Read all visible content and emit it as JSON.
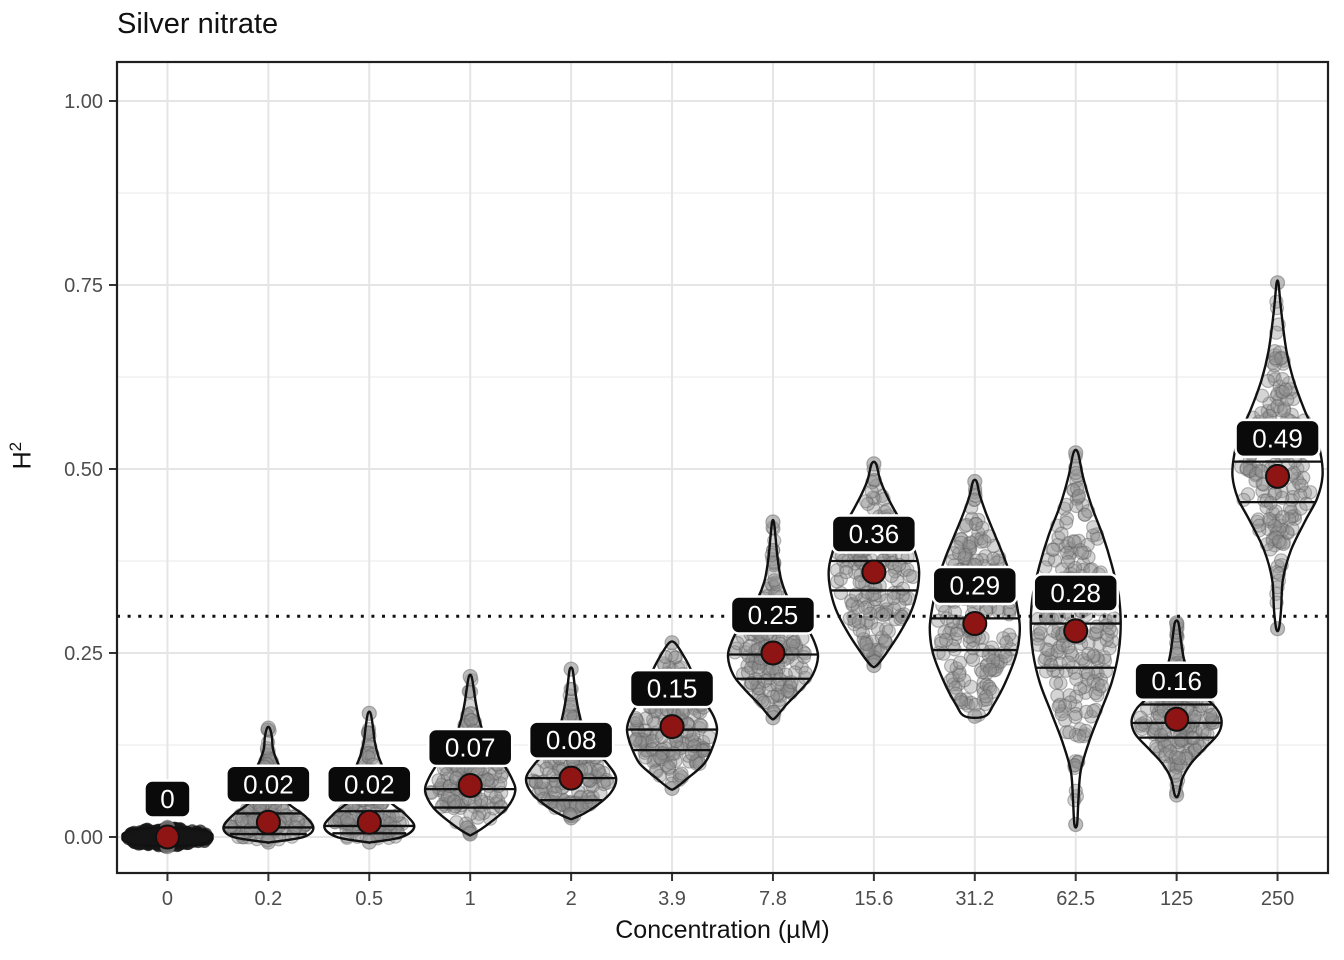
{
  "title": "Silver nitrate",
  "axes": {
    "x": {
      "label": "Concentration (µM)",
      "ticks": [
        "0",
        "0.2",
        "0.5",
        "1",
        "2",
        "3.9",
        "7.8",
        "15.6",
        "31.2",
        "62.5",
        "125",
        "250"
      ]
    },
    "y": {
      "label_base": "H",
      "label_exp": "2",
      "ticks": [
        "0.00",
        "0.25",
        "0.50",
        "0.75",
        "1.00"
      ],
      "tick_values": [
        0,
        0.25,
        0.5,
        0.75,
        1.0
      ],
      "minor_values": [
        0.125,
        0.375,
        0.625,
        0.875
      ]
    }
  },
  "reference_line": {
    "value": 0.3,
    "style": "dotted"
  },
  "colors": {
    "mean_point": "#8f1414",
    "violin_stroke": "#111111",
    "violin_fill": "#ffffff",
    "label_bg": "#0a0a0a",
    "label_text": "#ffffff",
    "label_border": "#ffffff",
    "grid_major": "#e5e5e5",
    "grid_minor": "#f1f1f1",
    "tick_text": "#4d4d4d",
    "axis_text": "#111111",
    "jitter_fill": "#909090",
    "jitter_stroke": "#5f5f5f",
    "panel_border": "#1f1f1f"
  },
  "chart_data": {
    "type": "violin",
    "title": "Silver nitrate",
    "xlabel": "Concentration (µM)",
    "ylabel": "H^2",
    "ylim": [
      -0.05,
      1.05
    ],
    "y_major_ticks": [
      0,
      0.25,
      0.5,
      0.75,
      1.0
    ],
    "reference_line_y": 0.3,
    "grid": true,
    "legend": false,
    "categories": [
      "0",
      "0.2",
      "0.5",
      "1",
      "2",
      "3.9",
      "7.8",
      "15.6",
      "31.2",
      "62.5",
      "125",
      "250"
    ],
    "means": [
      0,
      0.02,
      0.02,
      0.07,
      0.08,
      0.15,
      0.25,
      0.36,
      0.29,
      0.28,
      0.16,
      0.49
    ],
    "mean_labels": [
      "0",
      "0.02",
      "0.02",
      "0.07",
      "0.08",
      "0.15",
      "0.25",
      "0.36",
      "0.29",
      "0.28",
      "0.16",
      "0.49"
    ],
    "violins": [
      {
        "category": "0",
        "mean": 0.0,
        "label": "0",
        "quartiles": [],
        "range": [
          -0.013,
          0.013
        ],
        "profile": [
          [
            -0.013,
            0.04
          ],
          [
            -0.01,
            0.72
          ],
          [
            -0.005,
            0.97
          ],
          [
            0,
            1.0
          ],
          [
            0.005,
            0.97
          ],
          [
            0.01,
            0.72
          ],
          [
            0.013,
            0.04
          ]
        ],
        "n_points": 260,
        "solid": true
      },
      {
        "category": "0.2",
        "mean": 0.02,
        "label": "0.02",
        "quartiles": [
          0.004,
          0.013,
          0.032
        ],
        "range": [
          -0.007,
          0.148
        ],
        "profile": [
          [
            -0.007,
            0.05
          ],
          [
            0.0,
            0.78
          ],
          [
            0.012,
            1.0
          ],
          [
            0.028,
            0.82
          ],
          [
            0.045,
            0.45
          ],
          [
            0.06,
            0.28
          ],
          [
            0.075,
            0.24
          ],
          [
            0.09,
            0.28
          ],
          [
            0.105,
            0.18
          ],
          [
            0.12,
            0.1
          ],
          [
            0.135,
            0.08
          ],
          [
            0.148,
            0.03
          ]
        ],
        "n_points": 150,
        "solid": false
      },
      {
        "category": "0.5",
        "mean": 0.02,
        "label": "0.02",
        "quartiles": [
          0.005,
          0.015,
          0.035
        ],
        "range": [
          -0.007,
          0.168
        ],
        "profile": [
          [
            -0.007,
            0.05
          ],
          [
            0.0,
            0.72
          ],
          [
            0.014,
            1.0
          ],
          [
            0.032,
            0.78
          ],
          [
            0.05,
            0.42
          ],
          [
            0.07,
            0.3
          ],
          [
            0.09,
            0.32
          ],
          [
            0.11,
            0.2
          ],
          [
            0.13,
            0.12
          ],
          [
            0.15,
            0.08
          ],
          [
            0.168,
            0.03
          ]
        ],
        "n_points": 150,
        "solid": false
      },
      {
        "category": "1",
        "mean": 0.07,
        "label": "0.07",
        "quartiles": [
          0.04,
          0.065,
          0.1
        ],
        "range": [
          0.004,
          0.218
        ],
        "profile": [
          [
            0.004,
            0.06
          ],
          [
            0.02,
            0.45
          ],
          [
            0.04,
            0.82
          ],
          [
            0.062,
            1.0
          ],
          [
            0.08,
            0.92
          ],
          [
            0.1,
            0.72
          ],
          [
            0.12,
            0.45
          ],
          [
            0.14,
            0.3
          ],
          [
            0.16,
            0.2
          ],
          [
            0.18,
            0.13
          ],
          [
            0.2,
            0.08
          ],
          [
            0.218,
            0.03
          ]
        ],
        "n_points": 170,
        "solid": false
      },
      {
        "category": "2",
        "mean": 0.08,
        "label": "0.08",
        "quartiles": [
          0.05,
          0.08,
          0.112
        ],
        "range": [
          0.026,
          0.228
        ],
        "profile": [
          [
            0.026,
            0.08
          ],
          [
            0.04,
            0.5
          ],
          [
            0.06,
            0.88
          ],
          [
            0.08,
            1.0
          ],
          [
            0.1,
            0.8
          ],
          [
            0.115,
            0.55
          ],
          [
            0.13,
            0.38
          ],
          [
            0.15,
            0.25
          ],
          [
            0.17,
            0.17
          ],
          [
            0.19,
            0.11
          ],
          [
            0.21,
            0.07
          ],
          [
            0.228,
            0.03
          ]
        ],
        "n_points": 170,
        "solid": false
      },
      {
        "category": "3.9",
        "mean": 0.15,
        "label": "0.15",
        "quartiles": [
          0.118,
          0.146,
          0.18
        ],
        "range": [
          0.066,
          0.264
        ],
        "profile": [
          [
            0.066,
            0.06
          ],
          [
            0.08,
            0.35
          ],
          [
            0.1,
            0.72
          ],
          [
            0.125,
            0.92
          ],
          [
            0.145,
            1.0
          ],
          [
            0.16,
            0.95
          ],
          [
            0.175,
            0.82
          ],
          [
            0.19,
            0.62
          ],
          [
            0.21,
            0.52
          ],
          [
            0.23,
            0.4
          ],
          [
            0.25,
            0.22
          ],
          [
            0.264,
            0.06
          ]
        ],
        "n_points": 180,
        "solid": false
      },
      {
        "category": "7.8",
        "mean": 0.25,
        "label": "0.25",
        "quartiles": [
          0.215,
          0.248,
          0.285
        ],
        "range": [
          0.162,
          0.428
        ],
        "profile": [
          [
            0.162,
            0.05
          ],
          [
            0.18,
            0.3
          ],
          [
            0.2,
            0.62
          ],
          [
            0.22,
            0.88
          ],
          [
            0.245,
            1.0
          ],
          [
            0.265,
            0.92
          ],
          [
            0.285,
            0.75
          ],
          [
            0.305,
            0.52
          ],
          [
            0.325,
            0.33
          ],
          [
            0.35,
            0.18
          ],
          [
            0.38,
            0.1
          ],
          [
            0.405,
            0.06
          ],
          [
            0.428,
            0.02
          ]
        ],
        "n_points": 170,
        "solid": false
      },
      {
        "category": "15.6",
        "mean": 0.36,
        "label": "0.36",
        "quartiles": [
          0.335,
          0.375,
          0.405
        ],
        "range": [
          0.233,
          0.507
        ],
        "profile": [
          [
            0.233,
            0.06
          ],
          [
            0.25,
            0.28
          ],
          [
            0.28,
            0.6
          ],
          [
            0.31,
            0.85
          ],
          [
            0.34,
            0.98
          ],
          [
            0.365,
            1.0
          ],
          [
            0.39,
            0.9
          ],
          [
            0.42,
            0.68
          ],
          [
            0.445,
            0.45
          ],
          [
            0.465,
            0.28
          ],
          [
            0.485,
            0.14
          ],
          [
            0.507,
            0.05
          ]
        ],
        "n_points": 170,
        "solid": false
      },
      {
        "category": "31.2",
        "mean": 0.29,
        "label": "0.29",
        "quartiles": [
          0.254,
          0.297,
          0.335
        ],
        "range": [
          0.164,
          0.483
        ],
        "profile": [
          [
            0.164,
            0.22
          ],
          [
            0.18,
            0.42
          ],
          [
            0.21,
            0.68
          ],
          [
            0.25,
            0.93
          ],
          [
            0.285,
            1.0
          ],
          [
            0.32,
            0.92
          ],
          [
            0.35,
            0.82
          ],
          [
            0.38,
            0.65
          ],
          [
            0.41,
            0.45
          ],
          [
            0.44,
            0.25
          ],
          [
            0.465,
            0.11
          ],
          [
            0.483,
            0.04
          ]
        ],
        "n_points": 200,
        "solid": false
      },
      {
        "category": "62.5",
        "mean": 0.28,
        "label": "0.28",
        "quartiles": [
          0.23,
          0.29,
          0.35
        ],
        "range": [
          0.017,
          0.522
        ],
        "profile": [
          [
            0.017,
            0.03
          ],
          [
            0.05,
            0.06
          ],
          [
            0.09,
            0.11
          ],
          [
            0.13,
            0.3
          ],
          [
            0.17,
            0.55
          ],
          [
            0.21,
            0.8
          ],
          [
            0.25,
            0.95
          ],
          [
            0.29,
            1.0
          ],
          [
            0.33,
            0.95
          ],
          [
            0.37,
            0.8
          ],
          [
            0.41,
            0.6
          ],
          [
            0.45,
            0.35
          ],
          [
            0.49,
            0.16
          ],
          [
            0.522,
            0.05
          ]
        ],
        "n_points": 230,
        "solid": false
      },
      {
        "category": "125",
        "mean": 0.16,
        "label": "0.16",
        "quartiles": [
          0.135,
          0.155,
          0.18
        ],
        "range": [
          0.057,
          0.291
        ],
        "profile": [
          [
            0.057,
            0.04
          ],
          [
            0.08,
            0.13
          ],
          [
            0.1,
            0.32
          ],
          [
            0.12,
            0.62
          ],
          [
            0.14,
            0.92
          ],
          [
            0.158,
            1.0
          ],
          [
            0.175,
            0.88
          ],
          [
            0.195,
            0.55
          ],
          [
            0.215,
            0.32
          ],
          [
            0.24,
            0.17
          ],
          [
            0.265,
            0.1
          ],
          [
            0.291,
            0.04
          ]
        ],
        "n_points": 170,
        "solid": false
      },
      {
        "category": "250",
        "mean": 0.49,
        "label": "0.49",
        "quartiles": [
          0.455,
          0.51,
          0.565
        ],
        "range": [
          0.283,
          0.753
        ],
        "profile": [
          [
            0.283,
            0.03
          ],
          [
            0.31,
            0.08
          ],
          [
            0.35,
            0.12
          ],
          [
            0.39,
            0.3
          ],
          [
            0.43,
            0.62
          ],
          [
            0.46,
            0.88
          ],
          [
            0.49,
            1.0
          ],
          [
            0.52,
            0.96
          ],
          [
            0.55,
            0.82
          ],
          [
            0.58,
            0.6
          ],
          [
            0.62,
            0.36
          ],
          [
            0.66,
            0.2
          ],
          [
            0.7,
            0.11
          ],
          [
            0.728,
            0.06
          ],
          [
            0.753,
            0.02
          ]
        ],
        "n_points": 190,
        "solid": false
      }
    ]
  }
}
